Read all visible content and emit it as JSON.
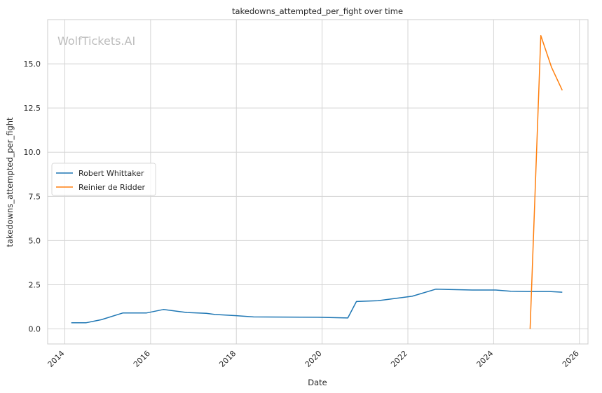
{
  "chart_data": {
    "type": "line",
    "title": "takedowns_attempted_per_fight over time",
    "xlabel": "Date",
    "ylabel": "takedowns_attempted_per_fight",
    "watermark": "WolfTickets.AI",
    "xlim": [
      2013.6,
      2026.2
    ],
    "ylim": [
      -0.85,
      17.5
    ],
    "xticks": [
      2014,
      2016,
      2018,
      2020,
      2022,
      2024,
      2026
    ],
    "yticks": [
      0.0,
      2.5,
      5.0,
      7.5,
      10.0,
      12.5,
      15.0
    ],
    "ytick_labels": [
      "0.0",
      "2.5",
      "5.0",
      "7.5",
      "10.0",
      "12.5",
      "15.0"
    ],
    "grid": true,
    "legend_position": "center-left",
    "series": [
      {
        "name": "Robert Whittaker",
        "color": "#1f77b4",
        "x": [
          2014.15,
          2014.5,
          2014.85,
          2015.35,
          2015.9,
          2016.3,
          2016.85,
          2017.3,
          2017.5,
          2018.0,
          2018.4,
          2019.9,
          2020.6,
          2020.8,
          2021.3,
          2022.1,
          2022.65,
          2023.5,
          2024.05,
          2024.4,
          2024.8,
          2025.3,
          2025.6
        ],
        "y": [
          0.35,
          0.35,
          0.52,
          0.9,
          0.9,
          1.1,
          0.93,
          0.88,
          0.82,
          0.75,
          0.68,
          0.66,
          0.62,
          1.55,
          1.6,
          1.85,
          2.25,
          2.2,
          2.2,
          2.13,
          2.12,
          2.12,
          2.08
        ]
      },
      {
        "name": "Reinier de Ridder",
        "color": "#ff7f0e",
        "x": [
          2024.85,
          2025.1,
          2025.35,
          2025.6
        ],
        "y": [
          0.0,
          16.6,
          14.8,
          13.5
        ]
      }
    ]
  }
}
